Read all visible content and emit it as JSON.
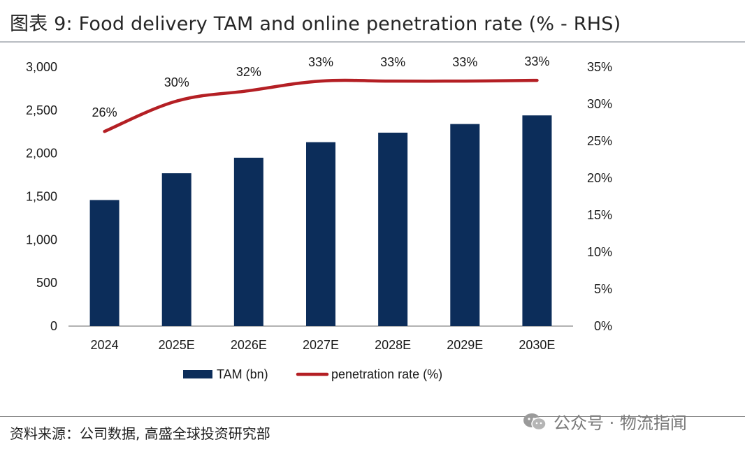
{
  "header": {
    "title": "图表 9: Food delivery TAM and online penetration rate (% - RHS)"
  },
  "footer": {
    "source": "资料来源：公司数据, 高盛全球投资研究部",
    "watermark_text": "公众号 · 物流指闻",
    "watermark_icon": "wechat-icon"
  },
  "chart_data": {
    "type": "bar",
    "categories": [
      "2024",
      "2025E",
      "2026E",
      "2027E",
      "2028E",
      "2029E",
      "2030E"
    ],
    "series": [
      {
        "name": "TAM (bn)",
        "type": "bar",
        "axis": "left",
        "values": [
          1460,
          1770,
          1950,
          2130,
          2240,
          2340,
          2440
        ],
        "color": "#0c2d5a"
      },
      {
        "name": "penetration rate (%)",
        "type": "line",
        "axis": "right",
        "values": [
          26.3,
          30.4,
          31.8,
          33.1,
          33.1,
          33.1,
          33.2
        ],
        "labels": [
          "26%",
          "30%",
          "32%",
          "33%",
          "33%",
          "33%",
          "33%"
        ],
        "color": "#b41f24"
      }
    ],
    "y_left": {
      "min": 0,
      "max": 3000,
      "ticks": [
        "0",
        "500",
        "1,000",
        "1,500",
        "2,000",
        "2,500",
        "3,000"
      ]
    },
    "y_right": {
      "min": 0,
      "max": 35,
      "ticks": [
        "0%",
        "5%",
        "10%",
        "15%",
        "20%",
        "25%",
        "30%",
        "35%"
      ]
    },
    "grid": false,
    "legend": "bottom"
  }
}
